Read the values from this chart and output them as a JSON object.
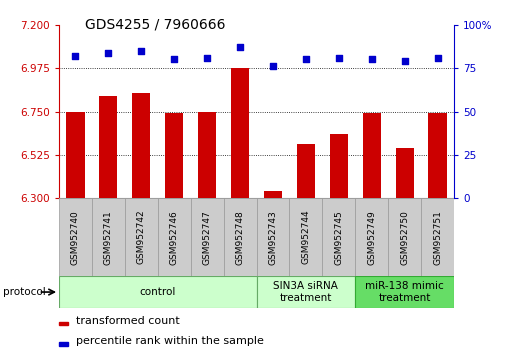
{
  "title": "GDS4255 / 7960666",
  "samples": [
    "GSM952740",
    "GSM952741",
    "GSM952742",
    "GSM952746",
    "GSM952747",
    "GSM952748",
    "GSM952743",
    "GSM952744",
    "GSM952745",
    "GSM952749",
    "GSM952750",
    "GSM952751"
  ],
  "bar_values": [
    6.75,
    6.83,
    6.845,
    6.74,
    6.75,
    6.975,
    6.34,
    6.58,
    6.635,
    6.74,
    6.56,
    6.74
  ],
  "dot_values": [
    82,
    84,
    85,
    80,
    81,
    87,
    76,
    80,
    81,
    80,
    79,
    81
  ],
  "ylim_left": [
    6.3,
    7.2
  ],
  "ylim_right": [
    0,
    100
  ],
  "yticks_left": [
    6.3,
    6.525,
    6.75,
    6.975,
    7.2
  ],
  "yticks_right": [
    0,
    25,
    50,
    75,
    100
  ],
  "bar_color": "#cc0000",
  "dot_color": "#0000cc",
  "bar_width": 0.55,
  "group_info": [
    {
      "label": "control",
      "start": 0,
      "end": 6,
      "facecolor": "#ccffcc",
      "edgecolor": "#66aa66"
    },
    {
      "label": "SIN3A siRNA\ntreatment",
      "start": 6,
      "end": 9,
      "facecolor": "#ccffcc",
      "edgecolor": "#66aa66"
    },
    {
      "label": "miR-138 mimic\ntreatment",
      "start": 9,
      "end": 12,
      "facecolor": "#66dd66",
      "edgecolor": "#33aa33"
    }
  ],
  "legend_bar_label": "transformed count",
  "legend_dot_label": "percentile rank within the sample",
  "protocol_label": "protocol",
  "bar_color_hex": "#cc0000",
  "dot_color_hex": "#0000cc",
  "left_tick_color": "#cc0000",
  "right_tick_color": "#0000cc",
  "title_fontsize": 10,
  "tick_fontsize": 7.5,
  "sample_fontsize": 6.5,
  "group_fontsize": 7.5,
  "legend_fontsize": 8
}
